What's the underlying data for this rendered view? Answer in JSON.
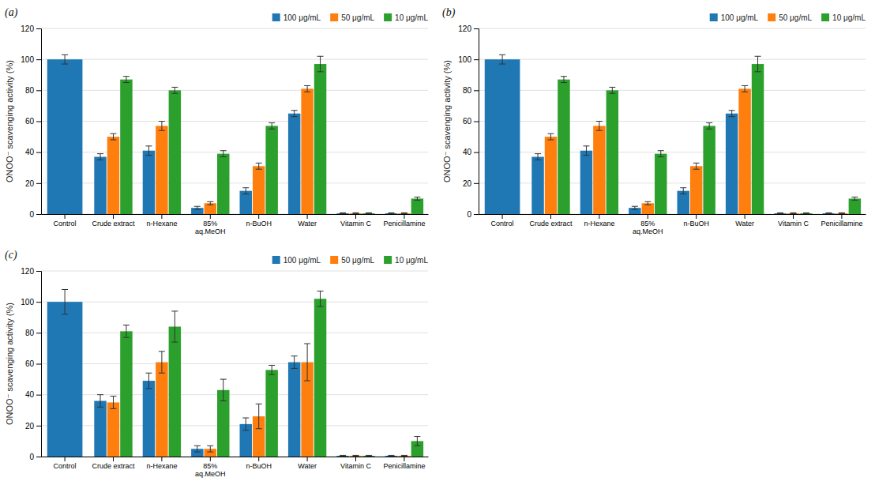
{
  "chart_data": [
    {
      "type": "bar",
      "title": "(a)",
      "categories": [
        "Control",
        "Crude extract",
        "n-Hexane",
        "85%\naq.MeOH",
        "n-BuOH",
        "Water",
        "Vitamin C",
        "Penicillamine"
      ],
      "ylabel": "ONOO⁻ scavenging activity (%)",
      "ylim": [
        0,
        120
      ],
      "yticks": [
        0,
        20,
        40,
        60,
        80,
        100,
        120
      ],
      "grid": true,
      "legend": "upper right",
      "series": [
        {
          "name": "100 μg/mL",
          "values": [
            100,
            37,
            41,
            4,
            15,
            65,
            0.5,
            0.5
          ],
          "errors": [
            3,
            2,
            3,
            1,
            2,
            2,
            0.3,
            0.3
          ]
        },
        {
          "name": "50 μg/mL",
          "values": [
            null,
            50,
            57,
            7,
            31,
            81,
            0.5,
            0.5
          ],
          "errors": [
            null,
            2,
            3,
            1,
            2,
            2,
            0.3,
            0.3
          ]
        },
        {
          "name": "10 μg/mL",
          "values": [
            null,
            87,
            80,
            39,
            57,
            97,
            0.5,
            10
          ],
          "errors": [
            null,
            2,
            2,
            2,
            2,
            5,
            0.3,
            1
          ]
        }
      ]
    },
    {
      "type": "bar",
      "title": "(b)",
      "categories": [
        "Control",
        "Crude extract",
        "n-Hexane",
        "85%\naq.MeOH",
        "n-BuOH",
        "Water",
        "Vitamin C",
        "Penicillamine"
      ],
      "ylabel": "ONOO⁻ scavenging activity (%)",
      "ylim": [
        0,
        120
      ],
      "yticks": [
        0,
        20,
        40,
        60,
        80,
        100,
        120
      ],
      "grid": true,
      "legend": "upper right",
      "series": [
        {
          "name": "100 μg/mL",
          "values": [
            100,
            37,
            41,
            4,
            15,
            65,
            0.5,
            0.5
          ],
          "errors": [
            3,
            2,
            3,
            1,
            2,
            2,
            0.3,
            0.3
          ]
        },
        {
          "name": "50 μg/mL",
          "values": [
            null,
            50,
            57,
            7,
            31,
            81,
            0.5,
            0.5
          ],
          "errors": [
            null,
            2,
            3,
            1,
            2,
            2,
            0.3,
            0.3
          ]
        },
        {
          "name": "10 μg/mL",
          "values": [
            null,
            87,
            80,
            39,
            57,
            97,
            0.5,
            10
          ],
          "errors": [
            null,
            2,
            2,
            2,
            2,
            5,
            0.3,
            1
          ]
        }
      ]
    },
    {
      "type": "bar",
      "title": "(c)",
      "categories": [
        "Control",
        "Crude extract",
        "n-Hexane",
        "85%\naq.MeOH",
        "n-BuOH",
        "Water",
        "Vitamin C",
        "Penicillamine"
      ],
      "ylabel": "ONOO⁻ scavenging activity (%)",
      "ylim": [
        0,
        120
      ],
      "yticks": [
        0,
        20,
        40,
        60,
        80,
        100,
        120
      ],
      "grid": true,
      "legend": "upper right",
      "series": [
        {
          "name": "100 μg/mL",
          "values": [
            100,
            36,
            49,
            5,
            21,
            61,
            0.5,
            0.5
          ],
          "errors": [
            8,
            4,
            5,
            2,
            4,
            4,
            0.3,
            0.3
          ]
        },
        {
          "name": "50 μg/mL",
          "values": [
            null,
            35,
            61,
            5,
            26,
            61,
            0.5,
            0.5
          ],
          "errors": [
            null,
            4,
            7,
            2,
            8,
            12,
            0.3,
            0.3
          ]
        },
        {
          "name": "10 μg/mL",
          "values": [
            null,
            81,
            84,
            43,
            56,
            102,
            0.5,
            10
          ],
          "errors": [
            null,
            4,
            10,
            7,
            3,
            5,
            0.3,
            3
          ]
        }
      ]
    }
  ]
}
